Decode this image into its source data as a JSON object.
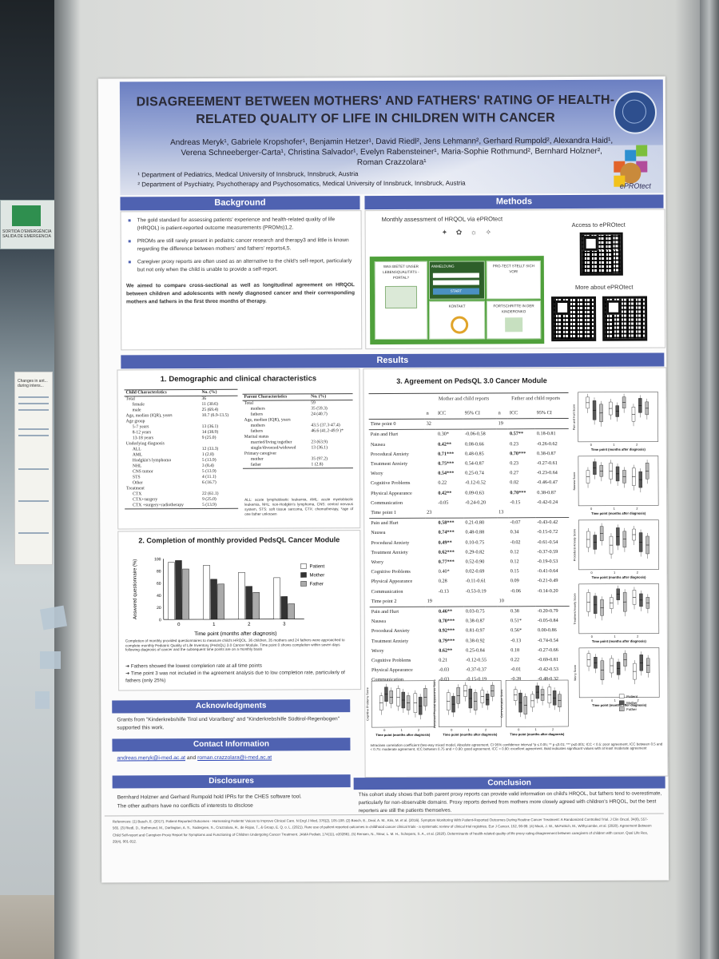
{
  "environment": {
    "exit_sign": "SORTIDA D'EMERGÈNCIA SALIDA DE EMERGENCIA",
    "other_poster_title": "Changes in ant... during intens..."
  },
  "poster": {
    "title": "DISAGREEMENT BETWEEN MOTHERS' AND FATHERS' RATING OF HEALTH-RELATED QUALITY OF LIFE IN CHILDREN WITH CANCER",
    "authors": "Andreas Meryk¹, Gabriele Kropshofer¹, Benjamin Hetzer¹, David Riedl², Jens Lehmann², Gerhard Rumpold², Alexandra Haid¹, Verena Schneeberger-Carta¹, Christina Salvador¹, Evelyn Rabensteiner¹, Maria-Sophie Rothmund², Bernhard Holzner², Roman Crazzolara¹",
    "affiliation_1": "¹ Department of Pediatrics, Medical University of Innsbruck, Innsbruck, Austria",
    "affiliation_2": "² Department of Psychiatry, Psychotherapy and Psychosomatics, Medical University of Innsbruck, Innsbruck, Austria",
    "logo_text": "ePROtect",
    "colors": {
      "bar": "#4f62b1",
      "app_green": "#4fa03b"
    }
  },
  "background": {
    "heading": "Background",
    "bullets": [
      "The gold standard for assessing patients' experience and health-related quality of life (HRQOL) is patient-reported outcome measurements (PROMs)1,2.",
      "PROMs are still rarely present in pediatric cancer research and therapy3 and little is known regarding the difference between mothers' and fathers' reports4,5.",
      "Caregiver proxy reports are often used as an alternative to the child's self-report, particularly but not only when the child is unable to provide a self-report."
    ],
    "aim": "We aimed to compare cross-sectional as well as longitudinal agreement on HRQOL between children and adolescents with newly diagnosed cancer and their corresponding mothers and fathers in the first three months of therapy."
  },
  "methods": {
    "heading": "Methods",
    "app_label": "Monthly assessment of HRQOL via ePROtect",
    "cards": [
      "WAS BIETET UNSER LEBENSQUALITÄTS - PORTAL?",
      "ANMELDUNG",
      "PRO-TECT STELLT SICH VOR!",
      "KONTAKT",
      "FORTSCHRITTE IN DER KINDERONKO"
    ],
    "login_button": "START",
    "access_label": "Access to ePROtect",
    "more_label": "More about ePROtect"
  },
  "results": {
    "heading": "Results",
    "demo": {
      "heading": "1. Demographic and clinical characteristics",
      "child_header": [
        "Child Characteristics",
        "No. (%)"
      ],
      "child_rows": [
        [
          "Total",
          "36"
        ],
        [
          "female",
          "11 (30.6)"
        ],
        [
          "male",
          "25 (69.4)"
        ],
        [
          "Age, median (IQR), years",
          "10.7 (6.9-13.5)"
        ],
        [
          "Age group",
          ""
        ],
        [
          "5-7 years",
          "13 (36.1)"
        ],
        [
          "8-12 years",
          "14 (38.9)"
        ],
        [
          "13-18 years",
          "9 (25.0)"
        ],
        [
          "Underlying diagnosis",
          ""
        ],
        [
          "ALL",
          "12 (33.3)"
        ],
        [
          "AML",
          "1 (2.8)"
        ],
        [
          "Hodgkin's lymphoma",
          "5 (13.9)"
        ],
        [
          "NHL",
          "3 (8.4)"
        ],
        [
          "CNS tumor",
          "5 (13.9)"
        ],
        [
          "STS",
          "4 (11.1)"
        ],
        [
          "Other",
          "6 (16.7)"
        ],
        [
          "Treatment",
          ""
        ],
        [
          "CTX",
          "22 (61.1)"
        ],
        [
          "CTX+surgery",
          "9 (25.0)"
        ],
        [
          "CTX +surgery+radiotherapy",
          "5 (13.9)"
        ]
      ],
      "parent_header": [
        "Parent Characteristics",
        "No. (%)"
      ],
      "parent_rows": [
        [
          "Total",
          "59"
        ],
        [
          "mothers",
          "35 (59.3)"
        ],
        [
          "fathers",
          "24 (40.7)"
        ],
        [
          "Age, median (IQR), years",
          ""
        ],
        [
          "mothers",
          "43.5 (37.3-47.4)"
        ],
        [
          "fathers",
          "46.6 (41.2-49.9 )*"
        ],
        [
          "Marital status",
          ""
        ],
        [
          "married/living together",
          "23 (63.9)"
        ],
        [
          "single/divorced/widowed",
          "13 (36.1)"
        ],
        [
          "Primary caregiver",
          ""
        ],
        [
          "mother",
          "35 (97.2)"
        ],
        [
          "father",
          "1 (2.8)"
        ]
      ],
      "footnote": "ALL: acute lymphoblastic leukemia, AML: acute myeloblastic leukemia, NHL: non-Hodgkin's lymphoma, CNS: central nervous system, STS: soft tissue sarcoma, CTX: chemotherapy, *age of one father unknown"
    },
    "completion": {
      "heading": "2. Completion of monthly provided PedsQL Cancer Module",
      "caption": "Completion of monthly provided questionnaires to measure child's HRQOL. 36 children, 35 mothers and 24 fathers were approached to complete monthly Pediatric Quality of Life Inventory (PedsQL) 3.0 Cancer Module. Time point 0 shows completion within seven days following diagnosis of cancer and the subsequent time points are on a monthly basis",
      "points": [
        "Fathers showed the lowest completion rate at all time points",
        "Time point 3 was not included in the agreement analysis due to low completion rate, particularly of fathers (only 25%)"
      ]
    },
    "agreement": {
      "heading": "3. Agreement on PedsQL 3.0 Cancer Module",
      "group_mother": "Mother and child reports",
      "group_father": "Father and child reports",
      "col_headers": [
        "n",
        "ICC",
        "95% CI",
        "n",
        "ICC",
        "95% CI"
      ],
      "blocks": [
        {
          "label": "Time point 0",
          "n_m": "32",
          "n_f": "19",
          "rows": [
            [
              "Pain and Hurt",
              "0.30*",
              "-0.06-0.58",
              "0.57**",
              "0.18-0.81"
            ],
            [
              "Nausea",
              "0.42**",
              "0.08-0.66",
              "0.23",
              "-0.26-0.62"
            ],
            [
              "Procedural Anxiety",
              "0.71***",
              "0.48-0.85",
              "0.70***",
              "0.38-0.87"
            ],
            [
              "Treatment Anxiety",
              "0.75***",
              "0.54-0.87",
              "0.23",
              "-0.27-0.61"
            ],
            [
              "Worry",
              "0.54***",
              "0.25-0.74",
              "0.27",
              "-0.23-0.64"
            ],
            [
              "Cognitive Problems",
              "0.22",
              "-0.12-0.52",
              "0.02",
              "-0.46-0.47"
            ],
            [
              "Physical Appearance",
              "0.42**",
              "0.09-0.63",
              "0.70***",
              "0.38-0.87"
            ],
            [
              "Communication",
              "-0.05",
              "-0.24-0.20",
              "-0.15",
              "-0.42-0.24"
            ]
          ]
        },
        {
          "label": "Time point 1",
          "n_m": "23",
          "n_f": "13",
          "rows": [
            [
              "Pain and Hurt",
              "0.58***",
              "0.21-0.80",
              "-0.07",
              "-0.43-0.42"
            ],
            [
              "Nausea",
              "0.74***",
              "0.48-0.88",
              "0.34",
              "-0.15-0.72"
            ],
            [
              "Procedural Anxiety",
              "0.49**",
              "0.10-0.75",
              "-0.02",
              "-0.61-0.54"
            ],
            [
              "Treatment Anxiety",
              "0.62***",
              "0.29-0.82",
              "0.12",
              "-0.37-0.59"
            ],
            [
              "Worry",
              "0.77***",
              "0.52-0.90",
              "0.12",
              "-0.19-0.53"
            ],
            [
              "Cognitive Problems",
              "0.40*",
              "0.02-0.69",
              "0.15",
              "-0.41-0.64"
            ],
            [
              "Physical Appearance",
              "0.28",
              "-0.11-0.61",
              "0.09",
              "-0.21-0.49"
            ],
            [
              "Communication",
              "-0.13",
              "-0.53-0.19",
              "-0.06",
              "-0.14-0.20"
            ]
          ]
        },
        {
          "label": "Time point 2",
          "n_m": "19",
          "n_f": "10",
          "rows": [
            [
              "Pain and Hurt",
              "0.46**",
              "0.03-0.75",
              "0.38",
              "-0.20-0.79"
            ],
            [
              "Nausea",
              "0.70***",
              "0.38-0.87",
              "0.51*",
              "-0.05-0.84"
            ],
            [
              "Procedural Anxiety",
              "0.92***",
              "0.81-0.97",
              "0.56*",
              "0.00-0.86"
            ],
            [
              "Treatment Anxiety",
              "0.79***",
              "0.38-0.92",
              "-0.13",
              "-0.74-0.54"
            ],
            [
              "Worry",
              "0.62**",
              "0.25-0.84",
              "0.18",
              "-0.27-0.66"
            ],
            [
              "Cognitive Problems",
              "0.21",
              "-0.12-0.55",
              "0.22",
              "-0.69-0.81"
            ],
            [
              "Physical Appearance",
              "-0.03",
              "-0.37-0.37",
              "-0.01",
              "-0.42-0.53"
            ],
            [
              "Communication",
              "-0.03",
              "-0.15-0.19",
              "-0.28",
              "-0.48-0.32"
            ]
          ]
        }
      ],
      "box_xlabel": "Time point (months after diagnosis)",
      "box_ylabels": [
        "Pain and Hurt Score",
        "Nausea Score",
        "Procedural Anxiety Score",
        "Treatment Anxiety Score",
        "Worry Score",
        "Cognitive Problems Score",
        "Perceived Physical Appearance Score",
        "Communication Score"
      ],
      "box_ticks": [
        "0",
        "1",
        "2"
      ],
      "box_legend": [
        "Patient",
        "Mother",
        "Father"
      ],
      "caption": "Intraclass correlation coefficient (two-way mixed model, Absolute agreement, CI 95% confidence interval *p ≤ 0.05; ** p ≤0.01; *** p≤0.001; ICC < 0.5: poor agreement, ICC between 0.5 and < 0.75: moderate agreement, ICC between 0.75 and < 0.90: good agreement, ICC > 0.90: excellent agreement. Bold indicates significant values with at least moderate agreement"
    }
  },
  "conclusion": {
    "heading": "Conclusion",
    "text": "This cohort study shows that both parent proxy reports can provide valid information on child's HRQOL, but fathers tend to overestimate, particularly for non-observable domains. Proxy reports derived from mothers more closely agreed with children's HRQOL, but the best reporters are still the patients themselves."
  },
  "acknowledgments": {
    "heading": "Acknowledgments",
    "text": "Grants from \"Kinderkrebshilfe Tirol und Vorarlberg\" and \"Kinderkrebshilfe Südtirol-Regenbogen\" supported this work."
  },
  "contact": {
    "heading": "Contact Information",
    "email_1": "andreas.meryk@i-med.ac.at",
    "and": "and",
    "email_2": "roman.crazzolara@i-med.ac.at"
  },
  "disclosures": {
    "heading": "Disclosures",
    "line_1": "Bernhard Holzner and Gerhard Rumpold hold IPRs for the CHES software tool.",
    "line_2": "The other authors have no conflicts of interests to disclose"
  },
  "references": {
    "text": "References: (1) Basch, E. (2017). Patient-Reported Outcomes - Harnessing Patients' Voices to Improve Clinical Care. N Engl J Med, 376(2), 105-108. (2) Basch, E., Deal, A. M., Kris, M. et al. (2016). Symptom Monitoring With Patient-Reported Outcomes During Routine Cancer Treatment: A Randomized Controlled Trial. J Clin Oncol, 34(6), 557-565. (3) Riedl, D., Rothmund, M., Darlington, A. S., Sodergren, S., Crazzolara, R., de Rojas, T., & Group, E. Q. o. L. (2021). Rare use of patient-reported outcomes in childhood cancer clinical trials - a systematic review of clinical trial registries. Eur J Cancer, 152, 90-99. (4) Mack, J. W., McFatrich, M., Withycombe, et al. (2020). Agreement Between Child Self-report and Caregiver-Proxy Report for Symptoms and Functioning of Children Undergoing Cancer Treatment. JAMA Pediatr, 174(11), e202861. (5) Rensen, N., Steur, L. M. H., Schepers, S. A., et al. (2020). Determinants of health-related quality of life proxy rating disagreement between caregivers of children with cancer. Qual Life Res, 29(4), 901-912."
  },
  "chart_data": [
    {
      "type": "bar",
      "title": "2. Completion of monthly provided PedsQL Cancer Module",
      "xlabel": "Time point (months after diagnosis)",
      "ylabel": "Answered questionnaire (%)",
      "categories": [
        "0",
        "1",
        "2",
        "3"
      ],
      "ylim": [
        0,
        100
      ],
      "ticks": [
        "0",
        "20",
        "40",
        "60",
        "80",
        "100"
      ],
      "series": [
        {
          "name": "Patient",
          "color": "#ffffff",
          "values": [
            94,
            89,
            77,
            68
          ]
        },
        {
          "name": "Mother",
          "color": "#333333",
          "values": [
            97,
            66,
            54,
            37
          ]
        },
        {
          "name": "Father",
          "color": "#aaaaaa",
          "values": [
            83,
            58,
            44,
            25
          ]
        }
      ]
    }
  ]
}
